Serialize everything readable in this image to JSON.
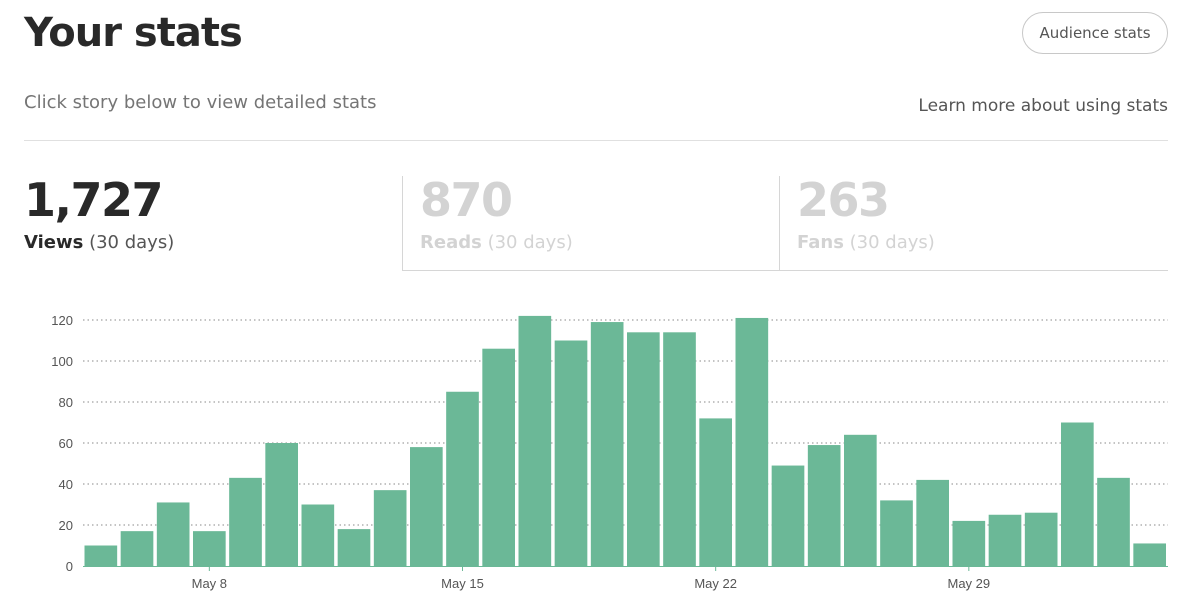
{
  "header": {
    "title": "Your stats",
    "audience_button": "Audience stats",
    "subtitle": "Click story below to view detailed stats",
    "learn_link": "Learn more about using stats"
  },
  "tabs": [
    {
      "value": "1,727",
      "label": "Views",
      "period": "(30 days)",
      "active": true
    },
    {
      "value": "870",
      "label": "Reads",
      "period": "(30 days)",
      "active": false
    },
    {
      "value": "263",
      "label": "Fans",
      "period": "(30 days)",
      "active": false
    }
  ],
  "colors": {
    "bar": "#6bb897",
    "gridline": "#8a8a8a",
    "axis": "#6bb897"
  },
  "chart_data": {
    "type": "bar",
    "categories": [
      "May 5",
      "May 6",
      "May 7",
      "May 8",
      "May 9",
      "May 10",
      "May 11",
      "May 12",
      "May 13",
      "May 14",
      "May 15",
      "May 16",
      "May 17",
      "May 18",
      "May 19",
      "May 20",
      "May 21",
      "May 22",
      "May 23",
      "May 24",
      "May 25",
      "May 26",
      "May 27",
      "May 28",
      "May 29",
      "May 30",
      "May 31",
      "Jun 1",
      "Jun 2",
      "Jun 3"
    ],
    "values": [
      10,
      17,
      31,
      17,
      43,
      60,
      30,
      18,
      37,
      58,
      85,
      106,
      122,
      110,
      119,
      114,
      114,
      72,
      121,
      49,
      59,
      64,
      32,
      42,
      22,
      25,
      26,
      70,
      43,
      11
    ],
    "tick_labels": [
      "May 8",
      "May 15",
      "May 22",
      "May 29"
    ],
    "y_ticks": [
      0,
      20,
      40,
      60,
      80,
      100,
      120
    ],
    "ylim": [
      0,
      130
    ],
    "grid": true
  }
}
